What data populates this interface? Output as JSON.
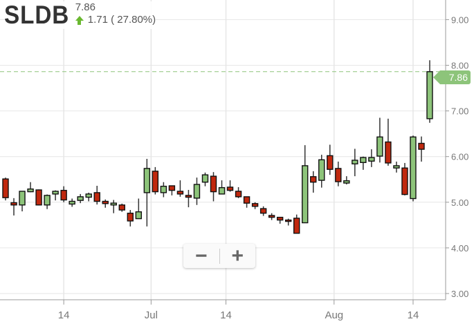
{
  "header": {
    "symbol": "SLDB",
    "last_price": "7.86",
    "change": "1.71 ( 27.80%)",
    "change_direction_icon": "arrow-up-icon"
  },
  "last_price_tag": "7.86",
  "zoom_controls": {
    "zoom_out_label": "−",
    "zoom_in_label": "+"
  },
  "colors": {
    "up": "#8dc47a",
    "down": "#c0280e",
    "accent_up": "#6ab830",
    "grid": "#e6e6e6"
  },
  "chart_data": {
    "type": "candlestick",
    "title": "",
    "xlabel": "",
    "ylabel": "",
    "ylim": [
      3.0,
      9.2
    ],
    "grid": true,
    "y_ticks": [
      "3.00",
      "4.00",
      "5.00",
      "6.00",
      "7.00",
      "8.00",
      "9.00"
    ],
    "x_ticks": [
      {
        "label": "14",
        "candle_index": 7
      },
      {
        "label": "Jul",
        "candle_index": 17.5
      },
      {
        "label": "14",
        "candle_index": 26.5
      },
      {
        "label": "Aug",
        "candle_index": 39.5
      },
      {
        "label": "14",
        "candle_index": 49
      }
    ],
    "last_price_line": 7.86,
    "candles": [
      [
        5.51,
        5.54,
        5.04,
        5.1
      ],
      [
        4.99,
        5.09,
        4.71,
        4.94
      ],
      [
        4.94,
        5.24,
        4.8,
        5.24
      ],
      [
        5.23,
        5.44,
        5.22,
        5.29
      ],
      [
        5.27,
        5.28,
        4.93,
        4.94
      ],
      [
        4.94,
        5.17,
        4.85,
        5.15
      ],
      [
        5.18,
        5.26,
        5.04,
        5.24
      ],
      [
        5.26,
        5.35,
        5.0,
        5.05
      ],
      [
        4.96,
        5.08,
        4.9,
        5.02
      ],
      [
        5.04,
        5.18,
        4.98,
        5.12
      ],
      [
        5.11,
        5.21,
        5.02,
        5.18
      ],
      [
        5.21,
        5.36,
        4.95,
        5.02
      ],
      [
        5.02,
        5.06,
        4.88,
        4.97
      ],
      [
        4.94,
        5.05,
        4.76,
        4.98
      ],
      [
        4.94,
        4.97,
        4.79,
        4.83
      ],
      [
        4.76,
        4.83,
        4.47,
        4.59
      ],
      [
        4.64,
        5.08,
        4.64,
        4.79
      ],
      [
        5.21,
        5.95,
        4.47,
        5.74
      ],
      [
        5.68,
        5.77,
        5.17,
        5.23
      ],
      [
        5.21,
        5.44,
        5.11,
        5.35
      ],
      [
        5.36,
        5.36,
        5.15,
        5.26
      ],
      [
        5.24,
        5.48,
        5.12,
        5.18
      ],
      [
        5.15,
        5.27,
        4.89,
        5.11
      ],
      [
        5.09,
        5.54,
        4.94,
        5.39
      ],
      [
        5.44,
        5.65,
        5.35,
        5.6
      ],
      [
        5.57,
        5.66,
        5.02,
        5.23
      ],
      [
        5.18,
        5.48,
        5.18,
        5.32
      ],
      [
        5.33,
        5.48,
        5.23,
        5.26
      ],
      [
        5.24,
        5.33,
        5.09,
        5.12
      ],
      [
        5.12,
        5.12,
        4.88,
        4.98
      ],
      [
        4.97,
        5.0,
        4.85,
        4.91
      ],
      [
        4.86,
        4.91,
        4.7,
        4.76
      ],
      [
        4.71,
        4.76,
        4.61,
        4.67
      ],
      [
        4.67,
        4.67,
        4.53,
        4.61
      ],
      [
        4.61,
        4.64,
        4.49,
        4.58
      ],
      [
        4.65,
        4.73,
        4.32,
        4.32
      ],
      [
        4.55,
        6.25,
        4.55,
        5.8
      ],
      [
        5.56,
        5.68,
        5.21,
        5.44
      ],
      [
        5.48,
        6.04,
        5.32,
        5.93
      ],
      [
        6.02,
        6.26,
        5.6,
        5.72
      ],
      [
        5.74,
        5.89,
        5.35,
        5.45
      ],
      [
        5.42,
        5.57,
        5.39,
        5.47
      ],
      [
        5.84,
        6.17,
        5.57,
        5.92
      ],
      [
        5.87,
        6.0,
        5.71,
        5.98
      ],
      [
        5.9,
        6.16,
        5.77,
        5.98
      ],
      [
        6.01,
        6.85,
        5.87,
        6.43
      ],
      [
        6.32,
        6.83,
        5.8,
        5.86
      ],
      [
        5.75,
        5.89,
        5.65,
        5.8
      ],
      [
        5.75,
        5.86,
        5.15,
        5.17
      ],
      [
        5.08,
        6.46,
        5.02,
        6.43
      ],
      [
        6.29,
        6.44,
        5.89,
        6.16
      ],
      [
        6.83,
        8.11,
        6.74,
        7.86
      ]
    ]
  }
}
